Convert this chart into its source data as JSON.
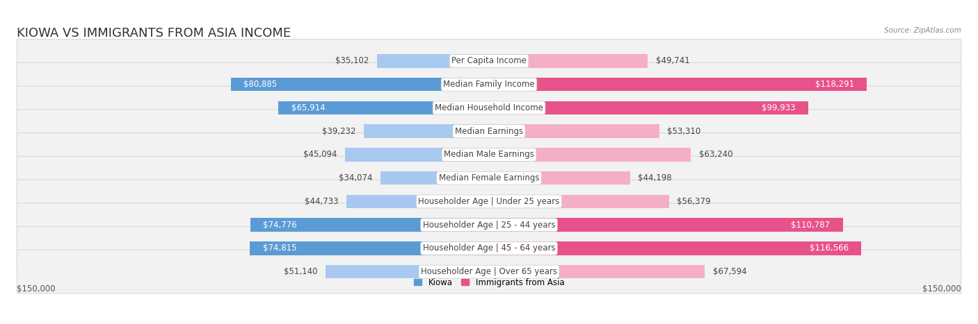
{
  "title": "KIOWA VS IMMIGRANTS FROM ASIA INCOME",
  "source": "Source: ZipAtlas.com",
  "categories": [
    "Per Capita Income",
    "Median Family Income",
    "Median Household Income",
    "Median Earnings",
    "Median Male Earnings",
    "Median Female Earnings",
    "Householder Age | Under 25 years",
    "Householder Age | 25 - 44 years",
    "Householder Age | 45 - 64 years",
    "Householder Age | Over 65 years"
  ],
  "kiowa_values": [
    35102,
    80885,
    65914,
    39232,
    45094,
    34074,
    44733,
    74776,
    74815,
    51140
  ],
  "asia_values": [
    49741,
    118291,
    99933,
    53310,
    63240,
    44198,
    56379,
    110787,
    116566,
    67594
  ],
  "kiowa_color_light": "#a8c8f0",
  "kiowa_color_dark": "#5b9bd5",
  "asia_color_light": "#f5aec8",
  "asia_color_dark": "#e8528a",
  "kiowa_label": "Kiowa",
  "asia_label": "Immigrants from Asia",
  "max_value": 150000,
  "background_color": "#ffffff",
  "row_bg_color": "#f2f2f2",
  "label_box_color": "#ffffff",
  "title_fontsize": 13,
  "value_fontsize": 8.5,
  "cat_fontsize": 8.5,
  "kiowa_dark_threshold": 60000,
  "asia_dark_threshold": 90000
}
